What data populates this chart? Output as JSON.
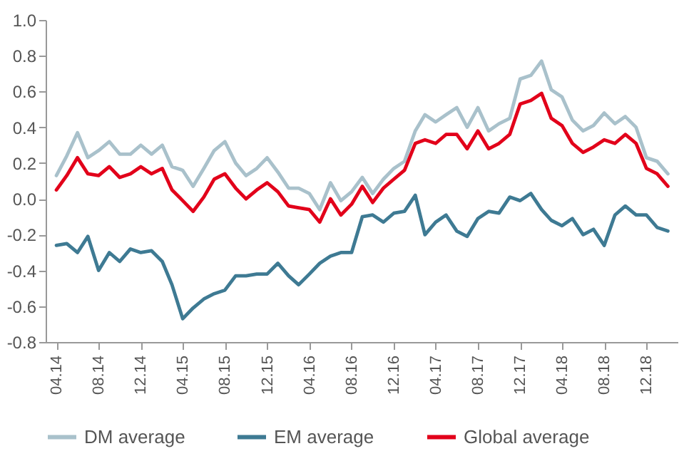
{
  "chart_data": {
    "type": "line",
    "x": [
      "2014-04",
      "2014-05",
      "2014-06",
      "2014-07",
      "2014-08",
      "2014-09",
      "2014-10",
      "2014-11",
      "2014-12",
      "2015-01",
      "2015-02",
      "2015-03",
      "2015-04",
      "2015-05",
      "2015-06",
      "2015-07",
      "2015-08",
      "2015-09",
      "2015-10",
      "2015-11",
      "2015-12",
      "2016-01",
      "2016-02",
      "2016-03",
      "2016-04",
      "2016-05",
      "2016-06",
      "2016-07",
      "2016-08",
      "2016-09",
      "2016-10",
      "2016-11",
      "2016-12",
      "2017-01",
      "2017-02",
      "2017-03",
      "2017-04",
      "2017-05",
      "2017-06",
      "2017-07",
      "2017-08",
      "2017-09",
      "2017-10",
      "2017-11",
      "2017-12",
      "2018-01",
      "2018-02",
      "2018-03",
      "2018-04",
      "2018-05",
      "2018-06",
      "2018-07",
      "2018-08",
      "2018-09",
      "2018-10",
      "2018-11",
      "2018-12",
      "2019-01",
      "2019-02"
    ],
    "series": [
      {
        "name": "DM average",
        "color": "#a9c1cb",
        "values": [
          0.13,
          0.24,
          0.37,
          0.23,
          0.27,
          0.32,
          0.25,
          0.25,
          0.3,
          0.25,
          0.3,
          0.18,
          0.16,
          0.07,
          0.17,
          0.27,
          0.32,
          0.2,
          0.13,
          0.17,
          0.23,
          0.15,
          0.06,
          0.06,
          0.03,
          -0.06,
          0.09,
          -0.01,
          0.04,
          0.12,
          0.03,
          0.11,
          0.17,
          0.21,
          0.38,
          0.47,
          0.43,
          0.47,
          0.51,
          0.4,
          0.51,
          0.38,
          0.42,
          0.45,
          0.67,
          0.69,
          0.77,
          0.61,
          0.57,
          0.44,
          0.38,
          0.41,
          0.48,
          0.42,
          0.46,
          0.4,
          0.23,
          0.21,
          0.14
        ]
      },
      {
        "name": "EM average",
        "color": "#3e7a93",
        "values": [
          -0.26,
          -0.25,
          -0.3,
          -0.21,
          -0.4,
          -0.3,
          -0.35,
          -0.28,
          -0.3,
          -0.29,
          -0.35,
          -0.48,
          -0.67,
          -0.61,
          -0.56,
          -0.53,
          -0.51,
          -0.43,
          -0.43,
          -0.42,
          -0.42,
          -0.36,
          -0.43,
          -0.48,
          -0.42,
          -0.36,
          -0.32,
          -0.3,
          -0.3,
          -0.1,
          -0.09,
          -0.13,
          -0.08,
          -0.07,
          0.02,
          -0.2,
          -0.13,
          -0.09,
          -0.18,
          -0.21,
          -0.11,
          -0.07,
          -0.08,
          0.01,
          -0.01,
          0.03,
          -0.06,
          -0.12,
          -0.15,
          -0.11,
          -0.2,
          -0.17,
          -0.26,
          -0.09,
          -0.04,
          -0.09,
          -0.09,
          -0.16,
          -0.18
        ]
      },
      {
        "name": "Global average",
        "color": "#e2001a",
        "values": [
          0.05,
          0.13,
          0.23,
          0.14,
          0.13,
          0.18,
          0.12,
          0.14,
          0.18,
          0.14,
          0.17,
          0.05,
          -0.01,
          -0.07,
          0.01,
          0.11,
          0.14,
          0.06,
          0.0,
          0.05,
          0.09,
          0.04,
          -0.04,
          -0.05,
          -0.06,
          -0.13,
          0.0,
          -0.09,
          -0.03,
          0.07,
          -0.02,
          0.06,
          0.11,
          0.16,
          0.31,
          0.33,
          0.31,
          0.36,
          0.36,
          0.28,
          0.38,
          0.28,
          0.31,
          0.36,
          0.53,
          0.55,
          0.59,
          0.45,
          0.41,
          0.31,
          0.26,
          0.29,
          0.33,
          0.31,
          0.36,
          0.31,
          0.17,
          0.14,
          0.07
        ]
      }
    ],
    "xlim": [
      "2014-03",
      "2019-03"
    ],
    "xticks": [
      {
        "value": "2014-04",
        "label": "04.14"
      },
      {
        "value": "2014-08",
        "label": "08.14"
      },
      {
        "value": "2014-12",
        "label": "12.14"
      },
      {
        "value": "2015-04",
        "label": "04.15"
      },
      {
        "value": "2015-08",
        "label": "08.15"
      },
      {
        "value": "2015-12",
        "label": "12.15"
      },
      {
        "value": "2016-04",
        "label": "04.16"
      },
      {
        "value": "2016-08",
        "label": "08.16"
      },
      {
        "value": "2016-12",
        "label": "12.16"
      },
      {
        "value": "2017-04",
        "label": "04.17"
      },
      {
        "value": "2017-08",
        "label": "08.17"
      },
      {
        "value": "2017-12",
        "label": "12.17"
      },
      {
        "value": "2018-04",
        "label": "04.18"
      },
      {
        "value": "2018-08",
        "label": "08.18"
      },
      {
        "value": "2018-12",
        "label": "12.18"
      }
    ],
    "ylim": [
      -0.8,
      1.0
    ],
    "yticks": [
      {
        "value": -0.8,
        "label": "-0.8"
      },
      {
        "value": -0.6,
        "label": "-0.6"
      },
      {
        "value": -0.4,
        "label": "-0.4"
      },
      {
        "value": -0.2,
        "label": "-0.2"
      },
      {
        "value": 0,
        "label": "0.0"
      },
      {
        "value": 0.2,
        "label": "0.2"
      },
      {
        "value": 0.4,
        "label": "0.4"
      },
      {
        "value": 0.6,
        "label": "0.6"
      },
      {
        "value": 0.8,
        "label": "0.8"
      },
      {
        "value": 1.0,
        "label": "1.0"
      }
    ],
    "grid": false,
    "legend": "bottom",
    "marker": "none",
    "line_style": "solid"
  }
}
